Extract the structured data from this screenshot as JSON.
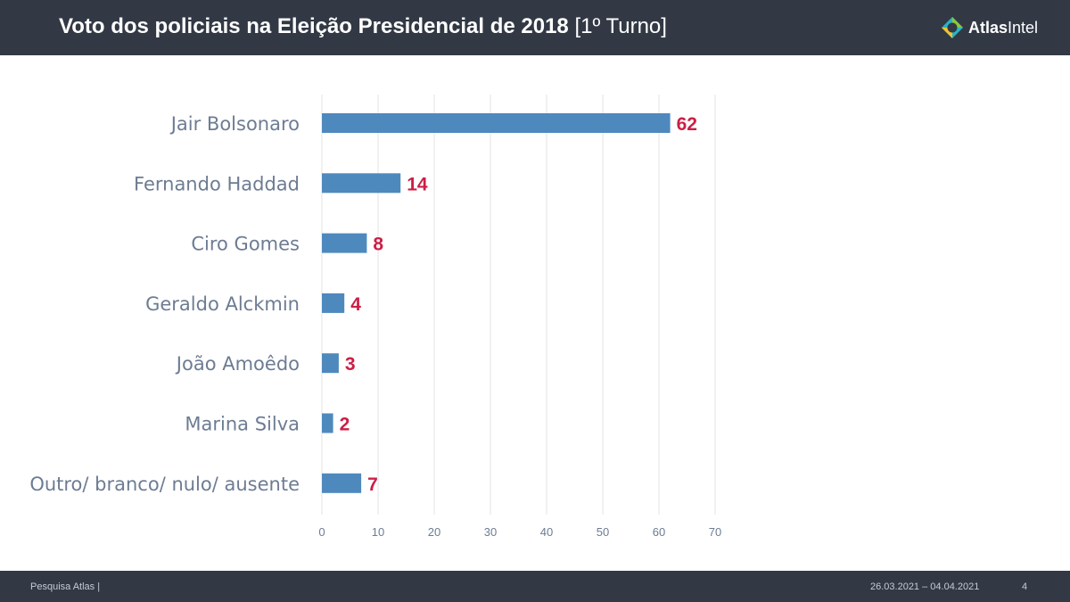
{
  "header": {
    "title_bold": "Voto dos policiais na Eleição Presidencial de 2018",
    "title_light": "[1º Turno]"
  },
  "logo": {
    "name_bold": "Atlas",
    "name_light": "Intel",
    "icon": "atlas-logo-icon"
  },
  "chart_data": {
    "type": "bar",
    "orientation": "horizontal",
    "title": "Voto dos policiais na Eleição Presidencial de 2018 [1º Turno]",
    "categories": [
      "Jair Bolsonaro",
      "Fernando Haddad",
      "Ciro Gomes",
      "Geraldo Alckmin",
      "João Amoêdo",
      "Marina Silva",
      "Outro/ branco/ nulo/ ausente"
    ],
    "values": [
      62,
      14,
      8,
      4,
      3,
      2,
      7
    ],
    "xlim": [
      0,
      70
    ],
    "xticks": [
      0,
      10,
      20,
      30,
      40,
      50,
      60,
      70
    ],
    "xlabel": "",
    "ylabel": "",
    "grid": true,
    "bar_color": "#4e89be",
    "label_color": "#cc1e45",
    "category_color": "#6d7c93",
    "tick_color": "#6d7c93",
    "grid_color": "#e3e3e3"
  },
  "footer": {
    "source": "Pesquisa Atlas  |",
    "dates": "26.03.2021 – 04.04.2021",
    "page": "4"
  }
}
